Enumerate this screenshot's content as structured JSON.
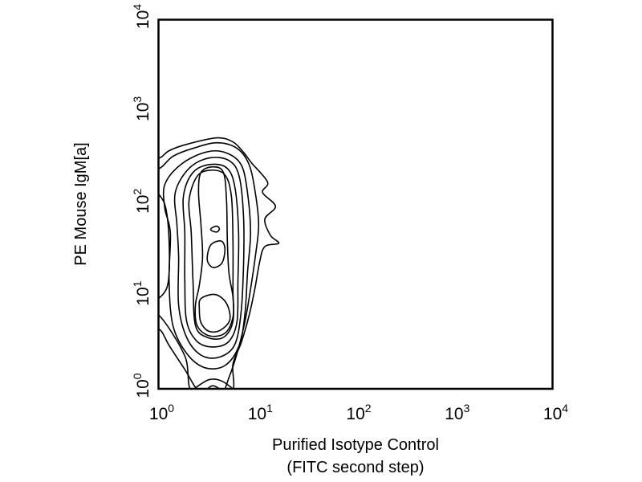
{
  "chart_data": {
    "type": "contour",
    "title": "",
    "xlabel": [
      "Purified Isotype Control",
      "(FITC second step)"
    ],
    "ylabel": "PE Mouse IgM[a]",
    "xscale": "log",
    "yscale": "log",
    "xlim": [
      1,
      10000
    ],
    "ylim": [
      1,
      10000
    ],
    "grid": false,
    "xticks": [
      {
        "base": "10",
        "exp": "0"
      },
      {
        "base": "10",
        "exp": "1"
      },
      {
        "base": "10",
        "exp": "2"
      },
      {
        "base": "10",
        "exp": "3"
      },
      {
        "base": "10",
        "exp": "4"
      }
    ],
    "yticks": [
      {
        "base": "10",
        "exp": "0"
      },
      {
        "base": "10",
        "exp": "1"
      },
      {
        "base": "10",
        "exp": "2"
      },
      {
        "base": "10",
        "exp": "3"
      },
      {
        "base": "10",
        "exp": "4"
      }
    ],
    "line_color": "#000000",
    "contours": [
      [
        [
          0.73,
          317
        ],
        [
          1.02,
          317
        ],
        [
          1.28,
          380
        ],
        [
          1.93,
          446
        ],
        [
          3.92,
          524
        ],
        [
          5.7,
          473
        ],
        [
          7.3,
          365
        ],
        [
          8.8,
          281
        ],
        [
          12.8,
          174
        ],
        [
          11.4,
          134
        ],
        [
          15.4,
          95
        ],
        [
          12,
          69
        ],
        [
          13.7,
          46
        ],
        [
          16.6,
          37.8
        ],
        [
          12,
          34.8
        ],
        [
          10.6,
          23.3
        ],
        [
          9.5,
          12
        ],
        [
          8.3,
          6.2
        ],
        [
          6.9,
          3.14
        ],
        [
          5.7,
          1.86
        ],
        [
          5.4,
          0.89
        ],
        [
          2.24,
          0.89
        ],
        [
          1.85,
          2.27
        ],
        [
          1.02,
          6.2
        ],
        [
          0.73,
          6.2
        ]
      ],
      [
        [
          0.73,
          244
        ],
        [
          1.02,
          244
        ],
        [
          1.4,
          330
        ],
        [
          2.24,
          403
        ],
        [
          3.92,
          464
        ],
        [
          6.27,
          403
        ],
        [
          8.3,
          270
        ],
        [
          9.6,
          134
        ],
        [
          10.4,
          60
        ],
        [
          9.6,
          26.9
        ],
        [
          8.6,
          12
        ],
        [
          7.55,
          5.4
        ],
        [
          6.27,
          2.42
        ],
        [
          5.19,
          1.32
        ],
        [
          4.31,
          0.89
        ],
        [
          2.7,
          0.89
        ],
        [
          1.85,
          1.62
        ],
        [
          1.28,
          2.96
        ],
        [
          1.02,
          4.41
        ],
        [
          0.73,
          4.41
        ]
      ],
      [
        [
          1.16,
          164
        ],
        [
          1.69,
          270
        ],
        [
          2.96,
          365
        ],
        [
          4.73,
          365
        ],
        [
          6.88,
          270
        ],
        [
          8.0,
          134
        ],
        [
          8.6,
          49
        ],
        [
          8.0,
          18
        ],
        [
          7.55,
          6.6
        ],
        [
          6.6,
          2.96
        ],
        [
          4.73,
          1.79
        ],
        [
          2.96,
          1.69
        ],
        [
          1.93,
          2.42
        ],
        [
          1.4,
          4.88
        ],
        [
          1.28,
          14.7
        ],
        [
          1.32,
          49
        ],
        [
          1.16,
          90
        ]
      ],
      [
        [
          1.48,
          134
        ],
        [
          2.04,
          244
        ],
        [
          3.25,
          317
        ],
        [
          5.19,
          298
        ],
        [
          6.6,
          200
        ],
        [
          7.3,
          73
        ],
        [
          7.3,
          22
        ],
        [
          6.88,
          6.6
        ],
        [
          5.9,
          2.96
        ],
        [
          4.07,
          2.19
        ],
        [
          2.7,
          2.32
        ],
        [
          1.93,
          3.61
        ],
        [
          1.6,
          8.06
        ],
        [
          1.6,
          26.9
        ],
        [
          1.54,
          60
        ]
      ],
      [
        [
          1.79,
          121
        ],
        [
          2.24,
          221
        ],
        [
          3.38,
          270
        ],
        [
          5.0,
          244
        ],
        [
          6.0,
          148
        ],
        [
          6.5,
          49
        ],
        [
          6.4,
          14.7
        ],
        [
          6.27,
          5.4
        ],
        [
          5.19,
          3.27
        ],
        [
          3.57,
          2.84
        ],
        [
          2.46,
          3.27
        ],
        [
          1.93,
          5.4
        ],
        [
          1.85,
          14.7
        ],
        [
          1.85,
          49
        ]
      ],
      [
        [
          2.04,
          109
        ],
        [
          2.46,
          200
        ],
        [
          3.38,
          234
        ],
        [
          4.73,
          208
        ],
        [
          5.5,
          121
        ],
        [
          5.7,
          40
        ],
        [
          5.7,
          12
        ],
        [
          5.7,
          5.4
        ],
        [
          4.56,
          3.61
        ],
        [
          3.13,
          3.61
        ],
        [
          2.37,
          4.88
        ],
        [
          2.24,
          14.7
        ],
        [
          2.15,
          49
        ]
      ],
      [
        [
          2.7,
          221
        ],
        [
          3.57,
          254
        ],
        [
          4.56,
          221
        ],
        [
          4.91,
          109
        ],
        [
          5.0,
          40
        ],
        [
          5.19,
          18
        ],
        [
          5.7,
          9.85
        ],
        [
          5.7,
          5.97
        ],
        [
          4.73,
          4.0
        ],
        [
          3.25,
          3.76
        ],
        [
          2.46,
          4.88
        ],
        [
          2.37,
          8.06
        ],
        [
          2.6,
          13.3
        ],
        [
          2.8,
          26.9
        ],
        [
          2.7,
          60
        ],
        [
          2.55,
          134
        ]
      ],
      [
        [
          2.7,
          9.5
        ],
        [
          3.78,
          10.5
        ],
        [
          4.91,
          8.4
        ],
        [
          5.3,
          5.6
        ],
        [
          4.23,
          4.3
        ],
        [
          3.25,
          4.2
        ],
        [
          2.7,
          5.2
        ],
        [
          2.6,
          7.3
        ]
      ],
      [
        [
          3.44,
          55
        ],
        [
          3.9,
          58
        ],
        [
          4.15,
          54
        ],
        [
          3.9,
          50
        ],
        [
          3.44,
          52
        ]
      ],
      [
        [
          3.38,
          36
        ],
        [
          4.31,
          40
        ],
        [
          4.73,
          32.8
        ],
        [
          4.4,
          23
        ],
        [
          3.57,
          20.7
        ],
        [
          3.13,
          25
        ]
      ],
      [
        [
          0.73,
          121
        ],
        [
          1.12,
          109
        ],
        [
          1.28,
          40
        ],
        [
          1.2,
          12
        ],
        [
          0.73,
          10.9
        ]
      ],
      [
        [
          2.24,
          0.89
        ],
        [
          2.96,
          1.2
        ],
        [
          3.78,
          1.27
        ],
        [
          4.91,
          1.13
        ],
        [
          5.7,
          0.89
        ]
      ],
      [
        [
          2.96,
          0.89
        ],
        [
          3.57,
          1.08
        ],
        [
          4.56,
          0.89
        ]
      ]
    ]
  }
}
